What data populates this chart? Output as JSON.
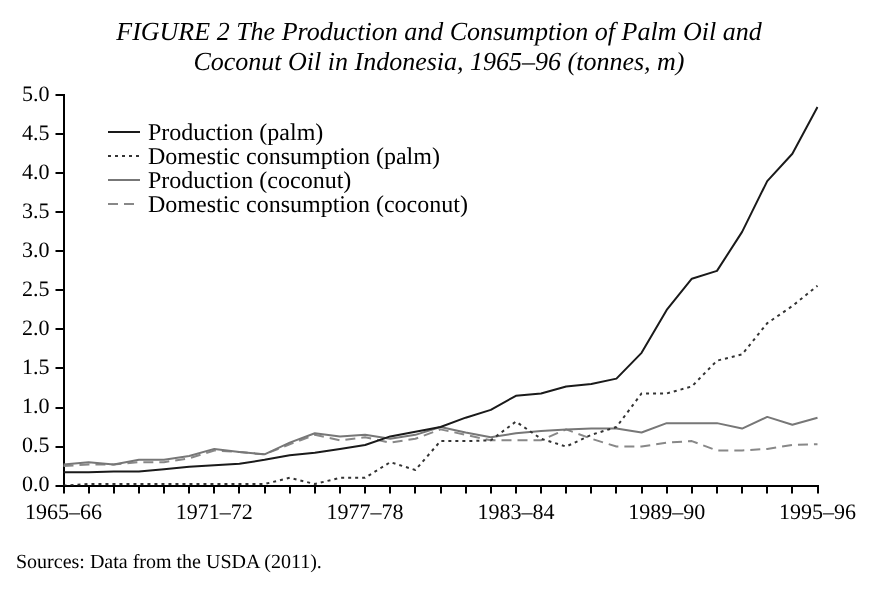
{
  "chart_data": {
    "type": "line",
    "title": "FIGURE 2  The Production and Consumption of Palm Oil and Coconut Oil in Indonesia, 1965–96 (tonnes, m)",
    "categories": [
      "1965–66",
      null,
      null,
      null,
      null,
      null,
      "1971–72",
      null,
      null,
      null,
      null,
      null,
      "1977–78",
      null,
      null,
      null,
      null,
      null,
      "1983–84",
      null,
      null,
      null,
      null,
      null,
      "1989–90",
      null,
      null,
      null,
      null,
      null,
      "1995–96"
    ],
    "series": [
      {
        "name": "Production (palm)",
        "color": "#1a1a1a",
        "line_style": "solid",
        "values": [
          0.17,
          0.17,
          0.18,
          0.18,
          0.21,
          0.24,
          0.26,
          0.28,
          0.33,
          0.39,
          0.42,
          0.47,
          0.52,
          0.63,
          0.69,
          0.75,
          0.87,
          0.97,
          1.15,
          1.18,
          1.27,
          1.3,
          1.37,
          1.7,
          2.25,
          2.65,
          2.75,
          3.25,
          3.9,
          4.25,
          4.85
        ]
      },
      {
        "name": "Domestic consumption (palm)",
        "color": "#333333",
        "line_style": "dotted",
        "values": [
          0.0,
          0.02,
          0.02,
          0.02,
          0.02,
          0.02,
          0.02,
          0.02,
          0.02,
          0.1,
          0.02,
          0.1,
          0.1,
          0.3,
          0.2,
          0.57,
          0.57,
          0.58,
          0.82,
          0.6,
          0.5,
          0.65,
          0.75,
          1.18,
          1.18,
          1.27,
          1.6,
          1.68,
          2.08,
          2.3,
          2.56
        ]
      },
      {
        "name": "Production (coconut)",
        "color": "#777777",
        "line_style": "solid",
        "values": [
          0.27,
          0.3,
          0.27,
          0.33,
          0.33,
          0.38,
          0.47,
          0.43,
          0.4,
          0.55,
          0.67,
          0.63,
          0.65,
          0.6,
          0.65,
          0.75,
          0.68,
          0.62,
          0.67,
          0.7,
          0.72,
          0.73,
          0.73,
          0.68,
          0.8,
          0.8,
          0.8,
          0.73,
          0.88,
          0.78,
          0.87
        ]
      },
      {
        "name": "Domestic consumption (coconut)",
        "color": "#888888",
        "line_style": "dashed",
        "values": [
          0.25,
          0.27,
          0.27,
          0.3,
          0.3,
          0.35,
          0.45,
          0.43,
          0.4,
          0.53,
          0.65,
          0.58,
          0.62,
          0.55,
          0.6,
          0.72,
          0.65,
          0.58,
          0.58,
          0.58,
          0.72,
          0.6,
          0.5,
          0.5,
          0.55,
          0.57,
          0.45,
          0.45,
          0.47,
          0.52,
          0.53
        ]
      }
    ],
    "ylim": [
      0,
      5
    ],
    "yticks": [
      {
        "value": 0,
        "label": "0.0"
      },
      {
        "value": 0.5,
        "label": "0.5"
      },
      {
        "value": 1,
        "label": "1.0"
      },
      {
        "value": 1.5,
        "label": "1.5"
      },
      {
        "value": 2,
        "label": "2.0"
      },
      {
        "value": 2.5,
        "label": "2.5"
      },
      {
        "value": 3,
        "label": "3.0"
      },
      {
        "value": 3.5,
        "label": "3.5"
      },
      {
        "value": 4,
        "label": "4.0"
      },
      {
        "value": 4.5,
        "label": "4.5"
      },
      {
        "value": 5,
        "label": "5.0"
      }
    ],
    "grid": false,
    "legend": "top left",
    "marker": "none",
    "annotations": [
      "Sources: Data from the USDA (2011)."
    ]
  }
}
